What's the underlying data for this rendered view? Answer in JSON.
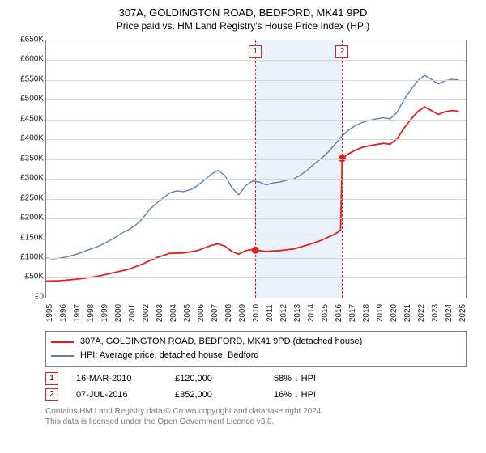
{
  "title": "307A, GOLDINGTON ROAD, BEDFORD, MK41 9PD",
  "subtitle": "Price paid vs. HM Land Registry's House Price Index (HPI)",
  "chart": {
    "type": "line",
    "x_start": 1995,
    "x_end": 2025.5,
    "xticks": [
      1995,
      1996,
      1997,
      1998,
      1999,
      2000,
      2001,
      2002,
      2003,
      2004,
      2005,
      2006,
      2007,
      2008,
      2009,
      2010,
      2011,
      2012,
      2013,
      2014,
      2015,
      2016,
      2017,
      2018,
      2019,
      2020,
      2021,
      2022,
      2023,
      2024,
      2025
    ],
    "y_min": 0,
    "y_max": 650000,
    "ytick_step": 50000,
    "currency_prefix": "£",
    "grid_color": "#d7d7d7",
    "border_color": "#808080",
    "background_color": "#ffffff",
    "band": {
      "from": 2010.2,
      "to": 2016.52,
      "color": "#eaf1f8"
    },
    "series": [
      {
        "id": "hpi",
        "label": "HPI: Average price, detached house, Bedford",
        "color": "#5b7fb2",
        "width": 1.4,
        "points": [
          [
            1995.0,
            100000
          ],
          [
            1995.5,
            98000
          ],
          [
            1996.0,
            100000
          ],
          [
            1996.5,
            103000
          ],
          [
            1997.0,
            108000
          ],
          [
            1997.5,
            113000
          ],
          [
            1998.0,
            120000
          ],
          [
            1998.5,
            126000
          ],
          [
            1999.0,
            133000
          ],
          [
            1999.5,
            142000
          ],
          [
            2000.0,
            152000
          ],
          [
            2000.5,
            163000
          ],
          [
            2001.0,
            172000
          ],
          [
            2001.5,
            183000
          ],
          [
            2002.0,
            200000
          ],
          [
            2002.5,
            222000
          ],
          [
            2003.0,
            238000
          ],
          [
            2003.5,
            252000
          ],
          [
            2004.0,
            265000
          ],
          [
            2004.5,
            270000
          ],
          [
            2005.0,
            268000
          ],
          [
            2005.5,
            273000
          ],
          [
            2006.0,
            283000
          ],
          [
            2006.5,
            297000
          ],
          [
            2007.0,
            312000
          ],
          [
            2007.5,
            322000
          ],
          [
            2008.0,
            308000
          ],
          [
            2008.5,
            278000
          ],
          [
            2009.0,
            260000
          ],
          [
            2009.5,
            283000
          ],
          [
            2010.0,
            295000
          ],
          [
            2010.5,
            292000
          ],
          [
            2011.0,
            285000
          ],
          [
            2011.5,
            290000
          ],
          [
            2012.0,
            292000
          ],
          [
            2012.5,
            297000
          ],
          [
            2013.0,
            300000
          ],
          [
            2013.5,
            310000
          ],
          [
            2014.0,
            323000
          ],
          [
            2014.5,
            338000
          ],
          [
            2015.0,
            352000
          ],
          [
            2015.5,
            368000
          ],
          [
            2016.0,
            388000
          ],
          [
            2016.5,
            408000
          ],
          [
            2017.0,
            424000
          ],
          [
            2017.5,
            435000
          ],
          [
            2018.0,
            443000
          ],
          [
            2018.5,
            448000
          ],
          [
            2019.0,
            452000
          ],
          [
            2019.5,
            455000
          ],
          [
            2020.0,
            452000
          ],
          [
            2020.5,
            468000
          ],
          [
            2021.0,
            500000
          ],
          [
            2021.5,
            525000
          ],
          [
            2022.0,
            548000
          ],
          [
            2022.5,
            562000
          ],
          [
            2023.0,
            552000
          ],
          [
            2023.5,
            540000
          ],
          [
            2024.0,
            548000
          ],
          [
            2024.5,
            552000
          ],
          [
            2025.0,
            550000
          ]
        ]
      },
      {
        "id": "property",
        "label": "307A, GOLDINGTON ROAD, BEDFORD, MK41 9PD (detached house)",
        "color": "#e02020",
        "width": 1.8,
        "points": [
          [
            1995.0,
            42000
          ],
          [
            1996.0,
            43000
          ],
          [
            1997.0,
            46000
          ],
          [
            1998.0,
            50000
          ],
          [
            1999.0,
            56000
          ],
          [
            2000.0,
            64000
          ],
          [
            2001.0,
            72000
          ],
          [
            2002.0,
            85000
          ],
          [
            2003.0,
            101000
          ],
          [
            2004.0,
            112000
          ],
          [
            2005.0,
            113000
          ],
          [
            2006.0,
            119000
          ],
          [
            2007.0,
            132000
          ],
          [
            2007.5,
            136000
          ],
          [
            2008.0,
            130000
          ],
          [
            2008.5,
            117000
          ],
          [
            2009.0,
            110000
          ],
          [
            2009.5,
            119000
          ],
          [
            2010.0,
            122000
          ],
          [
            2010.2,
            120000
          ],
          [
            2011.0,
            117000
          ],
          [
            2012.0,
            119000
          ],
          [
            2013.0,
            123000
          ],
          [
            2014.0,
            133000
          ],
          [
            2015.0,
            145000
          ],
          [
            2016.0,
            161000
          ],
          [
            2016.4,
            170000
          ],
          [
            2016.52,
            352000
          ],
          [
            2017.0,
            364000
          ],
          [
            2017.5,
            373000
          ],
          [
            2018.0,
            380000
          ],
          [
            2018.5,
            384000
          ],
          [
            2019.0,
            387000
          ],
          [
            2019.5,
            390000
          ],
          [
            2020.0,
            388000
          ],
          [
            2020.5,
            401000
          ],
          [
            2021.0,
            428000
          ],
          [
            2021.5,
            450000
          ],
          [
            2022.0,
            470000
          ],
          [
            2022.5,
            482000
          ],
          [
            2023.0,
            473000
          ],
          [
            2023.5,
            463000
          ],
          [
            2024.0,
            470000
          ],
          [
            2024.5,
            473000
          ],
          [
            2025.0,
            471000
          ]
        ]
      }
    ],
    "markers": [
      {
        "series": "property",
        "x": 2010.2,
        "y": 120000,
        "label": "1"
      },
      {
        "series": "property",
        "x": 2016.52,
        "y": 352000,
        "label": "2"
      }
    ]
  },
  "legend": {
    "items": [
      {
        "color": "#e02020",
        "text": "307A, GOLDINGTON ROAD, BEDFORD, MK41 9PD (detached house)"
      },
      {
        "color": "#5b7fb2",
        "text": "HPI: Average price, detached house, Bedford"
      }
    ]
  },
  "events": [
    {
      "n": "1",
      "date": "16-MAR-2010",
      "price": "£120,000",
      "delta": "58% ↓ HPI"
    },
    {
      "n": "2",
      "date": "07-JUL-2016",
      "price": "£352,000",
      "delta": "16% ↓ HPI"
    }
  ],
  "footer": {
    "line1": "Contains HM Land Registry data © Crown copyright and database right 2024.",
    "line2": "This data is licensed under the Open Government Licence v3.0."
  }
}
